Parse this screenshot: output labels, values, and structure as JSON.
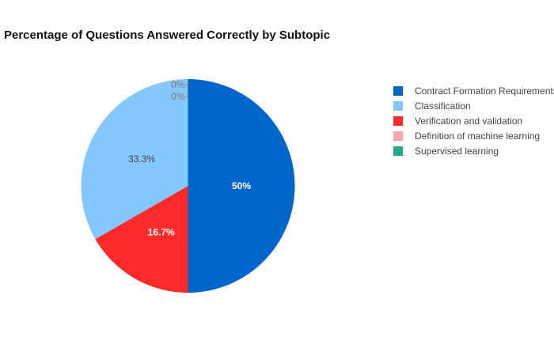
{
  "chart_data": {
    "type": "pie",
    "title": "Percentage of Questions Answered Correctly by Subtopic",
    "legend_position": "right",
    "slices": [
      {
        "label": "Contract Formation Requirements",
        "value": 50,
        "display": "50%",
        "color": "#0066CC",
        "label_color": "#ffffff"
      },
      {
        "label": "Verification and validation",
        "value": 16.7,
        "display": "16.7%",
        "color": "#FF2A2A",
        "label_color": "#ffffff"
      },
      {
        "label": "Classification",
        "value": 33.3,
        "display": "33.3%",
        "color": "#85C7FF",
        "label_color": "#444444"
      },
      {
        "label": "Definition of machine learning",
        "value": 0,
        "display": "0%",
        "color": "#FFA8A8",
        "label_color": "#777777"
      },
      {
        "label": "Supervised learning",
        "value": 0,
        "display": "0%",
        "color": "#23AA8E",
        "label_color": "#777777"
      }
    ],
    "legend": [
      {
        "label": "Contract Formation Requirements",
        "color": "#0066CC"
      },
      {
        "label": "Classification",
        "color": "#85C7FF"
      },
      {
        "label": "Verification and validation",
        "color": "#FF2A2A"
      },
      {
        "label": "Definition of machine learning",
        "color": "#FFA8A8"
      },
      {
        "label": "Supervised learning",
        "color": "#23AA8E"
      }
    ]
  }
}
